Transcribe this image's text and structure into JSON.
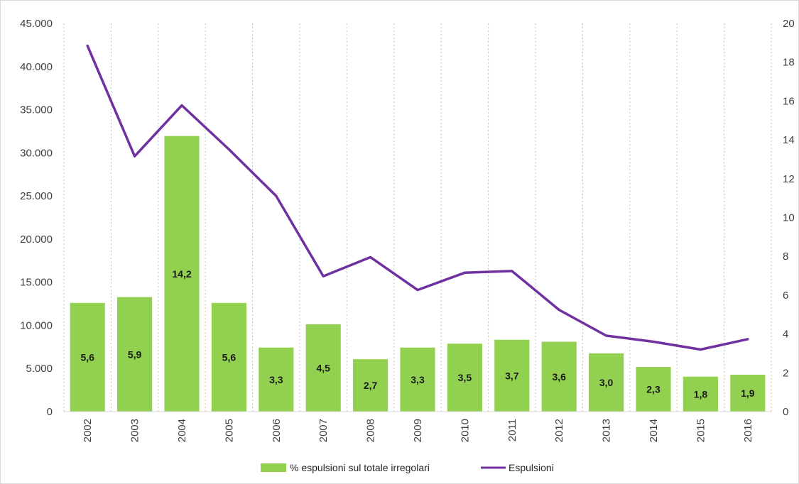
{
  "colors": {
    "bar": "#92d050",
    "line": "#7030a0",
    "grid": "#bfbfbf",
    "axis": "#d9d9d9",
    "text": "#404040"
  },
  "legend": {
    "bar_label": "% espulsioni sul totale irregolari",
    "line_label": "Espulsioni"
  },
  "chart_data": {
    "type": "bar",
    "categories": [
      "2002",
      "2003",
      "2004",
      "2005",
      "2006",
      "2007",
      "2008",
      "2009",
      "2010",
      "2011",
      "2012",
      "2013",
      "2014",
      "2015",
      "2016"
    ],
    "series": [
      {
        "name": "% espulsioni sul totale irregolari",
        "type": "bar",
        "axis": "right",
        "values": [
          5.6,
          5.9,
          14.2,
          5.6,
          3.3,
          4.5,
          2.7,
          3.3,
          3.5,
          3.7,
          3.6,
          3.0,
          2.3,
          1.8,
          1.9
        ],
        "labels": [
          "5,6",
          "5,9",
          "14,2",
          "5,6",
          "3,3",
          "4,5",
          "2,7",
          "3,3",
          "3,5",
          "3,7",
          "3,6",
          "3,0",
          "2,3",
          "1,8",
          "1,9"
        ]
      },
      {
        "name": "Espulsioni",
        "type": "line",
        "axis": "left",
        "values": [
          42400,
          29600,
          35500,
          30400,
          25000,
          15700,
          17900,
          14100,
          16100,
          16300,
          11800,
          8800,
          8100,
          7200,
          8400
        ]
      }
    ],
    "y_left": {
      "ylim": [
        0,
        45000
      ],
      "ticks": [
        0,
        5000,
        10000,
        15000,
        20000,
        25000,
        30000,
        35000,
        40000,
        45000
      ],
      "tick_labels": [
        "0",
        "5.000",
        "10.000",
        "15.000",
        "20.000",
        "25.000",
        "30.000",
        "35.000",
        "40.000",
        "45.000"
      ]
    },
    "y_right": {
      "ylim": [
        0,
        20
      ],
      "ticks": [
        0,
        2,
        4,
        6,
        8,
        10,
        12,
        14,
        16,
        18,
        20
      ],
      "tick_labels": [
        "0",
        "2",
        "4",
        "6",
        "8",
        "10",
        "12",
        "14",
        "16",
        "18",
        "20"
      ]
    },
    "grid": "vertical-dotted",
    "legend_position": "bottom"
  }
}
